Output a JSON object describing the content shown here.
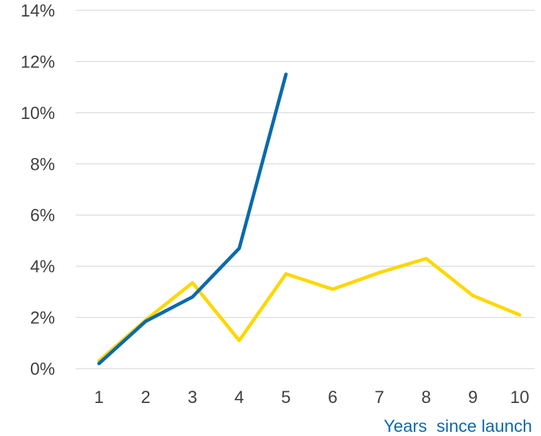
{
  "chart_data": {
    "type": "line",
    "x": [
      1,
      2,
      3,
      4,
      5,
      6,
      7,
      8,
      9,
      10
    ],
    "xtick_labels": [
      "1",
      "2",
      "3",
      "4",
      "5",
      "6",
      "7",
      "8",
      "9",
      "10"
    ],
    "ytick_labels": [
      "0%",
      "2%",
      "4%",
      "6%",
      "8%",
      "10%",
      "12%",
      "14%"
    ],
    "yticks": [
      0,
      2,
      4,
      6,
      8,
      10,
      12,
      14
    ],
    "ylim": [
      0,
      14
    ],
    "xlabel": "Years  since launch",
    "ylabel": "",
    "title": "",
    "grid": true,
    "legend": "none",
    "series": [
      {
        "color": "#ffd700",
        "values": [
          0.3,
          1.9,
          3.35,
          1.1,
          3.7,
          3.1,
          3.75,
          4.3,
          2.85,
          2.1
        ]
      },
      {
        "color": "#0a6aad",
        "values": [
          0.2,
          1.85,
          2.8,
          4.7,
          11.5,
          null,
          null,
          null,
          null,
          null
        ]
      }
    ]
  }
}
